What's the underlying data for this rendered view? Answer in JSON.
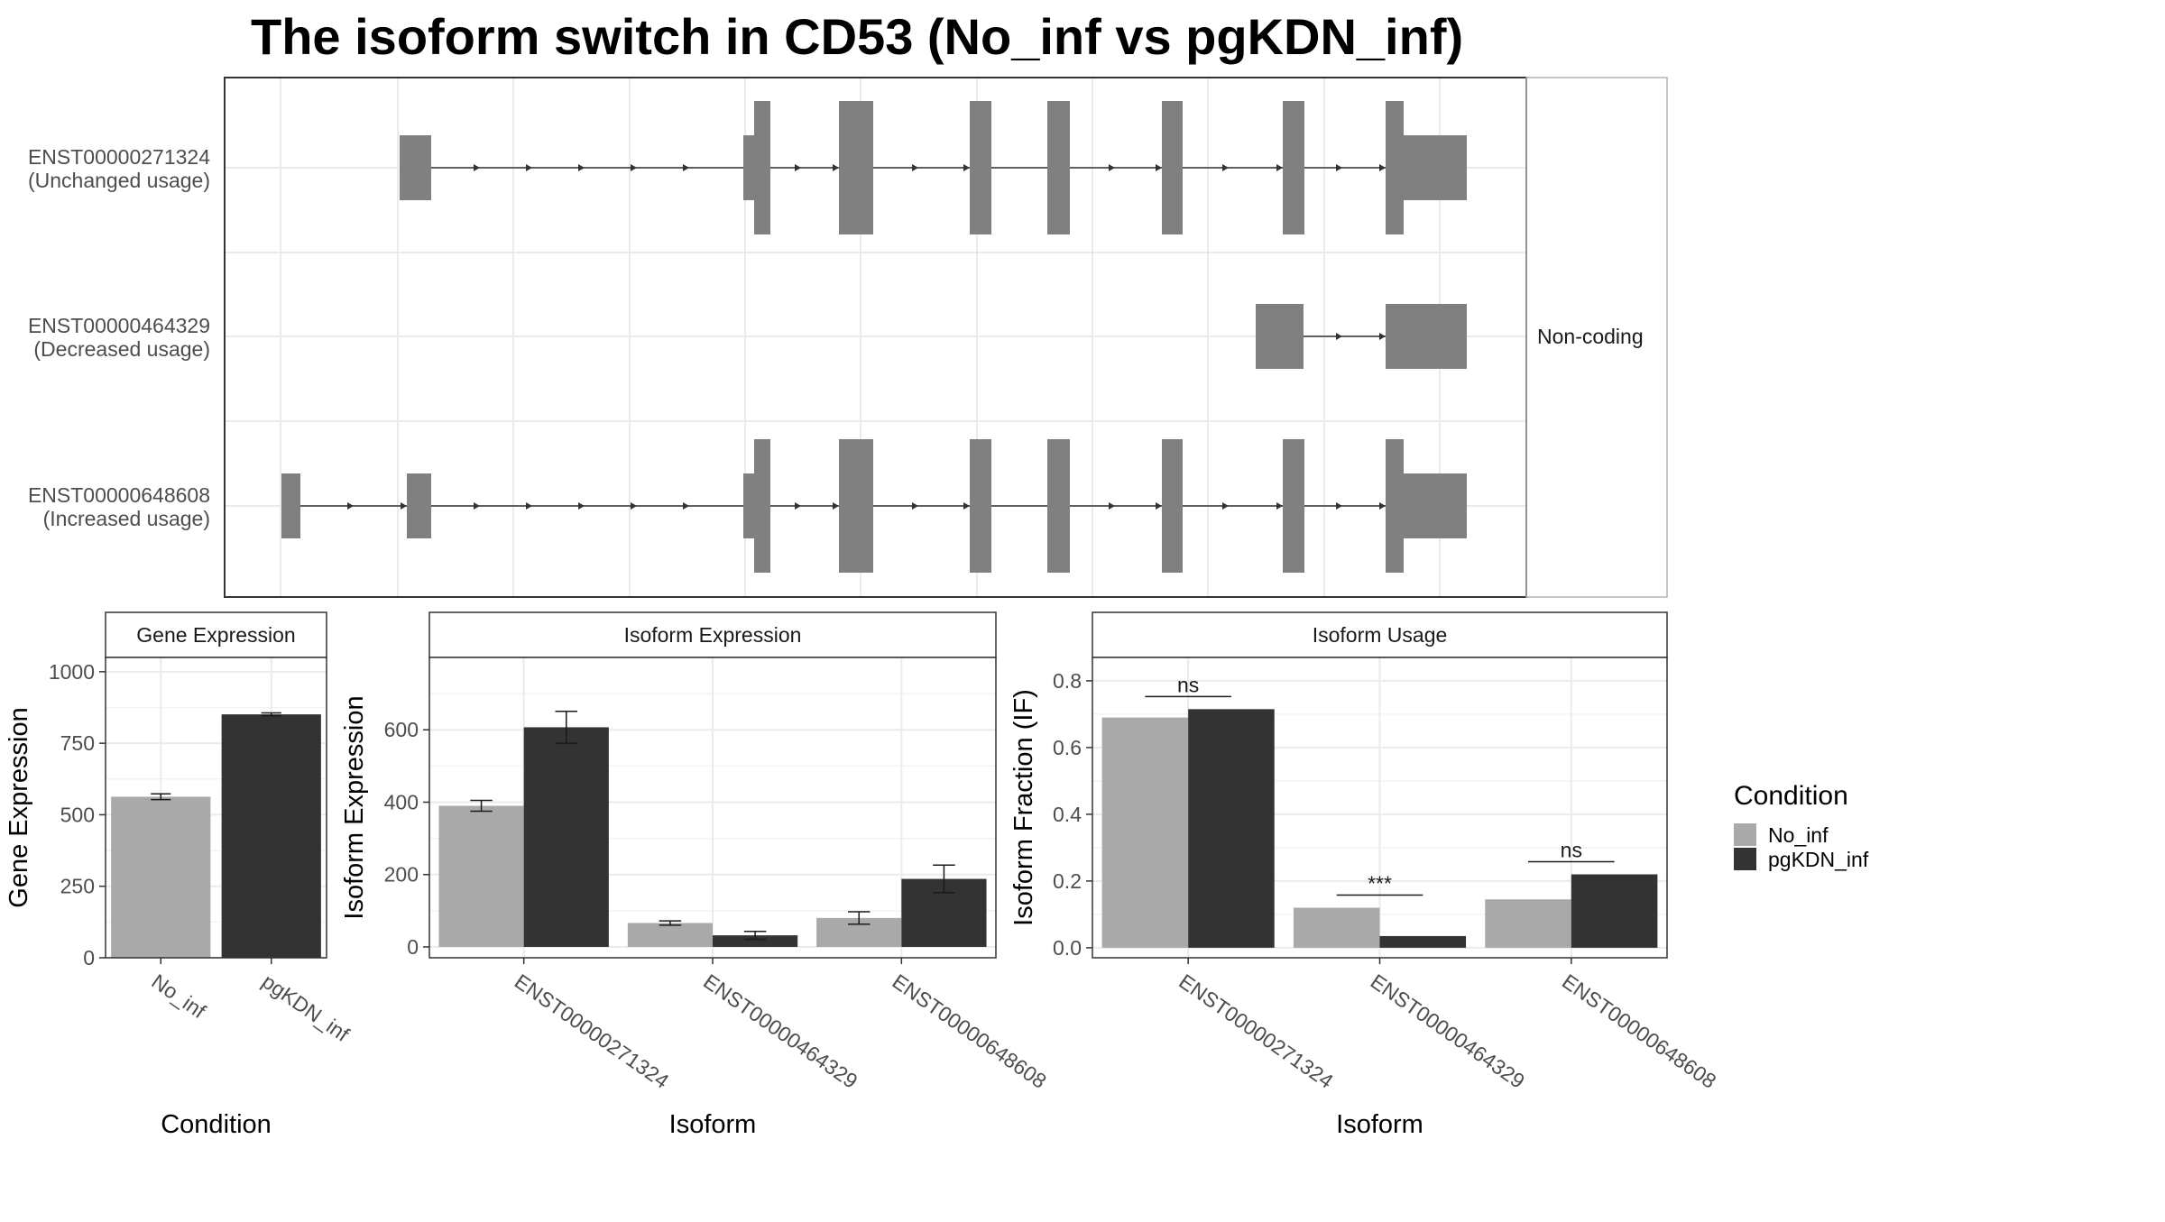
{
  "title": "The isoform switch in CD53 (No_inf vs pgKDN_inf)",
  "colors": {
    "No_inf": "#A9A9A9",
    "pgKDN_inf": "#333333",
    "exon": "#808080",
    "intron": "#333333",
    "grid": "#EBEBEB",
    "panel_border": "#333333",
    "strip_border": "#B3B3B3",
    "text": "#4D4D4D"
  },
  "transcript_structure": {
    "isoforms": [
      {
        "id": "ENST00000271324",
        "usage": "(Unchanged usage)",
        "coding": true,
        "annotation": ""
      },
      {
        "id": "ENST00000464329",
        "usage": "(Decreased usage)",
        "coding": false,
        "annotation": "Non-coding"
      },
      {
        "id": "ENST00000648608",
        "usage": "(Increased usage)",
        "coding": true,
        "annotation": ""
      }
    ]
  },
  "chart_data": [
    {
      "type": "bar",
      "strip": "Gene Expression",
      "xlabel": "Condition",
      "ylabel": "Gene Expression",
      "categories": [
        "No_inf",
        "pgKDN_inf"
      ],
      "values": [
        563,
        851
      ],
      "error": [
        [
          553,
          573
        ],
        [
          846,
          856
        ]
      ],
      "ylim": [
        0,
        1050
      ],
      "yticks": [
        0,
        250,
        500,
        750,
        1000
      ],
      "grid": true
    },
    {
      "type": "bar",
      "strip": "Isoform Expression",
      "xlabel": "Isoform",
      "ylabel": "Isoform Expression",
      "categories": [
        "ENST00000271324",
        "ENST00000464329",
        "ENST00000648608"
      ],
      "series": [
        {
          "name": "No_inf",
          "values": [
            390,
            66,
            80
          ],
          "error": [
            [
              375,
              405
            ],
            [
              60,
              72
            ],
            [
              63,
              97
            ]
          ]
        },
        {
          "name": "pgKDN_inf",
          "values": [
            607,
            32,
            188
          ],
          "error": [
            [
              563,
              651
            ],
            [
              21,
              43
            ],
            [
              150,
              226
            ]
          ]
        }
      ],
      "ylim": [
        -30,
        800
      ],
      "yticks": [
        0,
        200,
        400,
        600
      ],
      "grid": true
    },
    {
      "type": "bar",
      "strip": "Isoform Usage",
      "xlabel": "Isoform",
      "ylabel": "Isoform Fraction (IF)",
      "categories": [
        "ENST00000271324",
        "ENST00000464329",
        "ENST00000648608"
      ],
      "series": [
        {
          "name": "No_inf",
          "values": [
            0.69,
            0.12,
            0.145
          ]
        },
        {
          "name": "pgKDN_inf",
          "values": [
            0.715,
            0.035,
            0.22
          ]
        }
      ],
      "significance": [
        "ns",
        "***",
        "ns"
      ],
      "ylim": [
        -0.03,
        0.87
      ],
      "yticks": [
        0.0,
        0.2,
        0.4,
        0.6,
        0.8
      ],
      "grid": true
    }
  ],
  "legend": {
    "title": "Condition",
    "items": [
      "No_inf",
      "pgKDN_inf"
    ],
    "position": "right"
  }
}
